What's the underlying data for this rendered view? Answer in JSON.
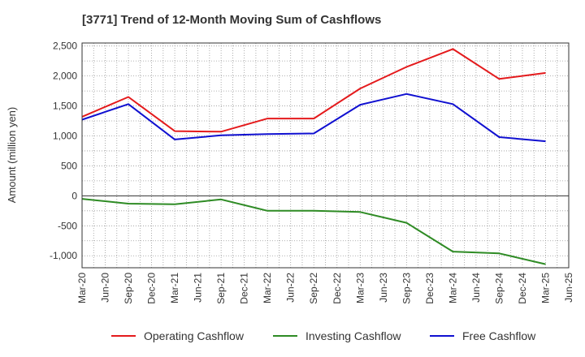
{
  "chart_data": {
    "type": "line",
    "title": "[3771]  Trend of 12-Month Moving Sum of Cashflows",
    "ylabel": "Amount (million yen)",
    "xlabel": "",
    "ylim": [
      -1200,
      2550
    ],
    "yticks": [
      -1000,
      -500,
      0,
      500,
      1000,
      1500,
      2000,
      2500
    ],
    "ytick_labels": [
      "-1,000",
      "-500",
      "0",
      "500",
      "1,000",
      "1,500",
      "2,000",
      "2,500"
    ],
    "categories": [
      "Mar-20",
      "Jun-20",
      "Sep-20",
      "Dec-20",
      "Mar-21",
      "Jun-21",
      "Sep-21",
      "Dec-21",
      "Mar-22",
      "Jun-22",
      "Sep-22",
      "Dec-22",
      "Mar-23",
      "Jun-23",
      "Sep-23",
      "Dec-23",
      "Mar-24",
      "Jun-24",
      "Sep-24",
      "Dec-24",
      "Mar-25",
      "Jun-25"
    ],
    "grid": true,
    "legend_position": "bottom",
    "series": [
      {
        "name": "Operating Cashflow",
        "color": "#e41a1c",
        "values": [
          1320,
          null,
          1650,
          null,
          1080,
          null,
          1070,
          null,
          1290,
          null,
          1290,
          null,
          1790,
          null,
          2150,
          null,
          2450,
          null,
          1950,
          null,
          2050,
          null
        ]
      },
      {
        "name": "Investing Cashflow",
        "color": "#2e8b24",
        "values": [
          -50,
          null,
          -130,
          null,
          -140,
          null,
          -60,
          null,
          -250,
          null,
          -250,
          null,
          -270,
          null,
          -450,
          null,
          -930,
          null,
          -960,
          null,
          -1140,
          null
        ]
      },
      {
        "name": "Free Cashflow",
        "color": "#1010d0",
        "values": [
          1270,
          null,
          1530,
          null,
          940,
          null,
          1010,
          null,
          1030,
          null,
          1040,
          null,
          1520,
          null,
          1700,
          null,
          1530,
          null,
          980,
          null,
          910,
          null
        ]
      }
    ]
  }
}
